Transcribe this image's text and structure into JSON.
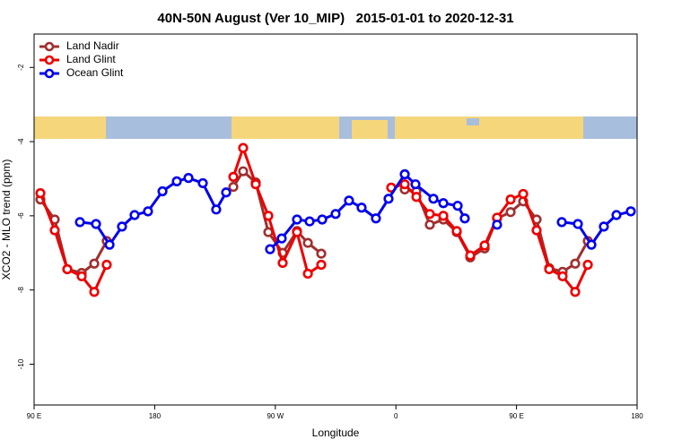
{
  "chart_data": {
    "type": "line",
    "title": "40N-50N August (Ver 10_MIP)   2015-01-01 to 2020-12-31",
    "xlabel": "Longitude",
    "ylabel": "XCO2 - MLO trend (ppm)",
    "xlim": [
      90,
      540
    ],
    "ylim": [
      -11.1,
      -1.1
    ],
    "xticks": [
      {
        "value": 90,
        "label": "90 E"
      },
      180,
      {
        "value": 270,
        "label": "90 W"
      },
      {
        "value": 360,
        "label": "0"
      },
      {
        "value": 450,
        "label": "90 E"
      },
      {
        "value": 540,
        "label": "180"
      }
    ],
    "yticks": [
      -10,
      -8,
      -6,
      -4,
      -2
    ],
    "legend": "top-left",
    "series": [
      {
        "name": "Land Nadir",
        "color": "#a03030",
        "x": [
          94.7,
          105.4,
          114.8,
          125.5,
          134.9,
          144.2,
          null,
          238.7,
          246.0,
          255.4,
          264.8,
          275.5,
          286.2,
          294.3,
          304.3,
          null,
          366.6,
          375.3,
          385.3,
          395.4,
          405.4,
          415.5,
          426.2,
          435.5,
          445.6,
          455.0,
          465.0,
          474.4,
          484.4,
          493.8,
          503.2
        ],
        "values": [
          -5.56,
          -6.1,
          -7.44,
          -7.54,
          -7.29,
          -6.68,
          null,
          -5.22,
          -4.8,
          -5.1,
          -6.44,
          -7.0,
          -6.41,
          -6.73,
          -7.02,
          null,
          -5.29,
          -5.34,
          -6.24,
          -6.1,
          -6.44,
          -7.12,
          -6.88,
          -6.07,
          -5.9,
          -5.61,
          -6.1,
          -7.41,
          -7.51,
          -7.29,
          -6.68
        ]
      },
      {
        "name": "Land Glint",
        "color": "#ee0000",
        "x": [
          94.7,
          105.4,
          114.8,
          125.5,
          134.9,
          144.2,
          null,
          238.7,
          246.0,
          255.4,
          264.8,
          275.5,
          286.2,
          294.3,
          304.3,
          null,
          356.5,
          366.6,
          375.3,
          385.3,
          395.4,
          405.4,
          415.5,
          426.2,
          435.5,
          445.6,
          455.0,
          465.0,
          474.4,
          484.4,
          493.8,
          503.2
        ],
        "values": [
          -5.39,
          -6.39,
          -7.44,
          -7.63,
          -8.05,
          -7.32,
          null,
          -4.95,
          -4.17,
          -5.15,
          -6.0,
          -7.27,
          -6.44,
          -7.56,
          -7.32,
          null,
          -5.24,
          -5.15,
          -5.49,
          -5.95,
          -6.0,
          -6.41,
          -7.07,
          -6.8,
          -6.05,
          -5.56,
          -5.41,
          -6.39,
          -7.44,
          -7.63,
          -8.05,
          -7.32
        ]
      },
      {
        "name": "Ocean Glint",
        "color": "#0000ee",
        "x": [
          124.2,
          136.2,
          146.3,
          155.6,
          165.0,
          175.0,
          185.8,
          196.5,
          205.2,
          215.9,
          225.9,
          233.3,
          null,
          266.1,
          274.8,
          286.2,
          295.6,
          305.0,
          315.0,
          325.0,
          334.4,
          345.1,
          354.5,
          366.6,
          374.6,
          388.0,
          395.4,
          406.1,
          411.4,
          null,
          435.5,
          null,
          483.8,
          495.8,
          505.9,
          515.2,
          524.6,
          535.3
        ],
        "values": [
          -6.17,
          -6.22,
          -6.78,
          -6.29,
          -5.98,
          -5.88,
          -5.34,
          -5.07,
          -4.98,
          -5.12,
          -5.83,
          -5.37,
          null,
          -6.9,
          -6.61,
          -6.1,
          -6.15,
          -6.1,
          -5.95,
          -5.59,
          -5.78,
          -6.07,
          -5.54,
          -4.88,
          -5.15,
          -5.54,
          -5.66,
          -5.73,
          -6.07,
          null,
          -6.24,
          null,
          -6.17,
          -6.22,
          -6.78,
          -6.29,
          -5.98,
          -5.88
        ]
      }
    ]
  }
}
